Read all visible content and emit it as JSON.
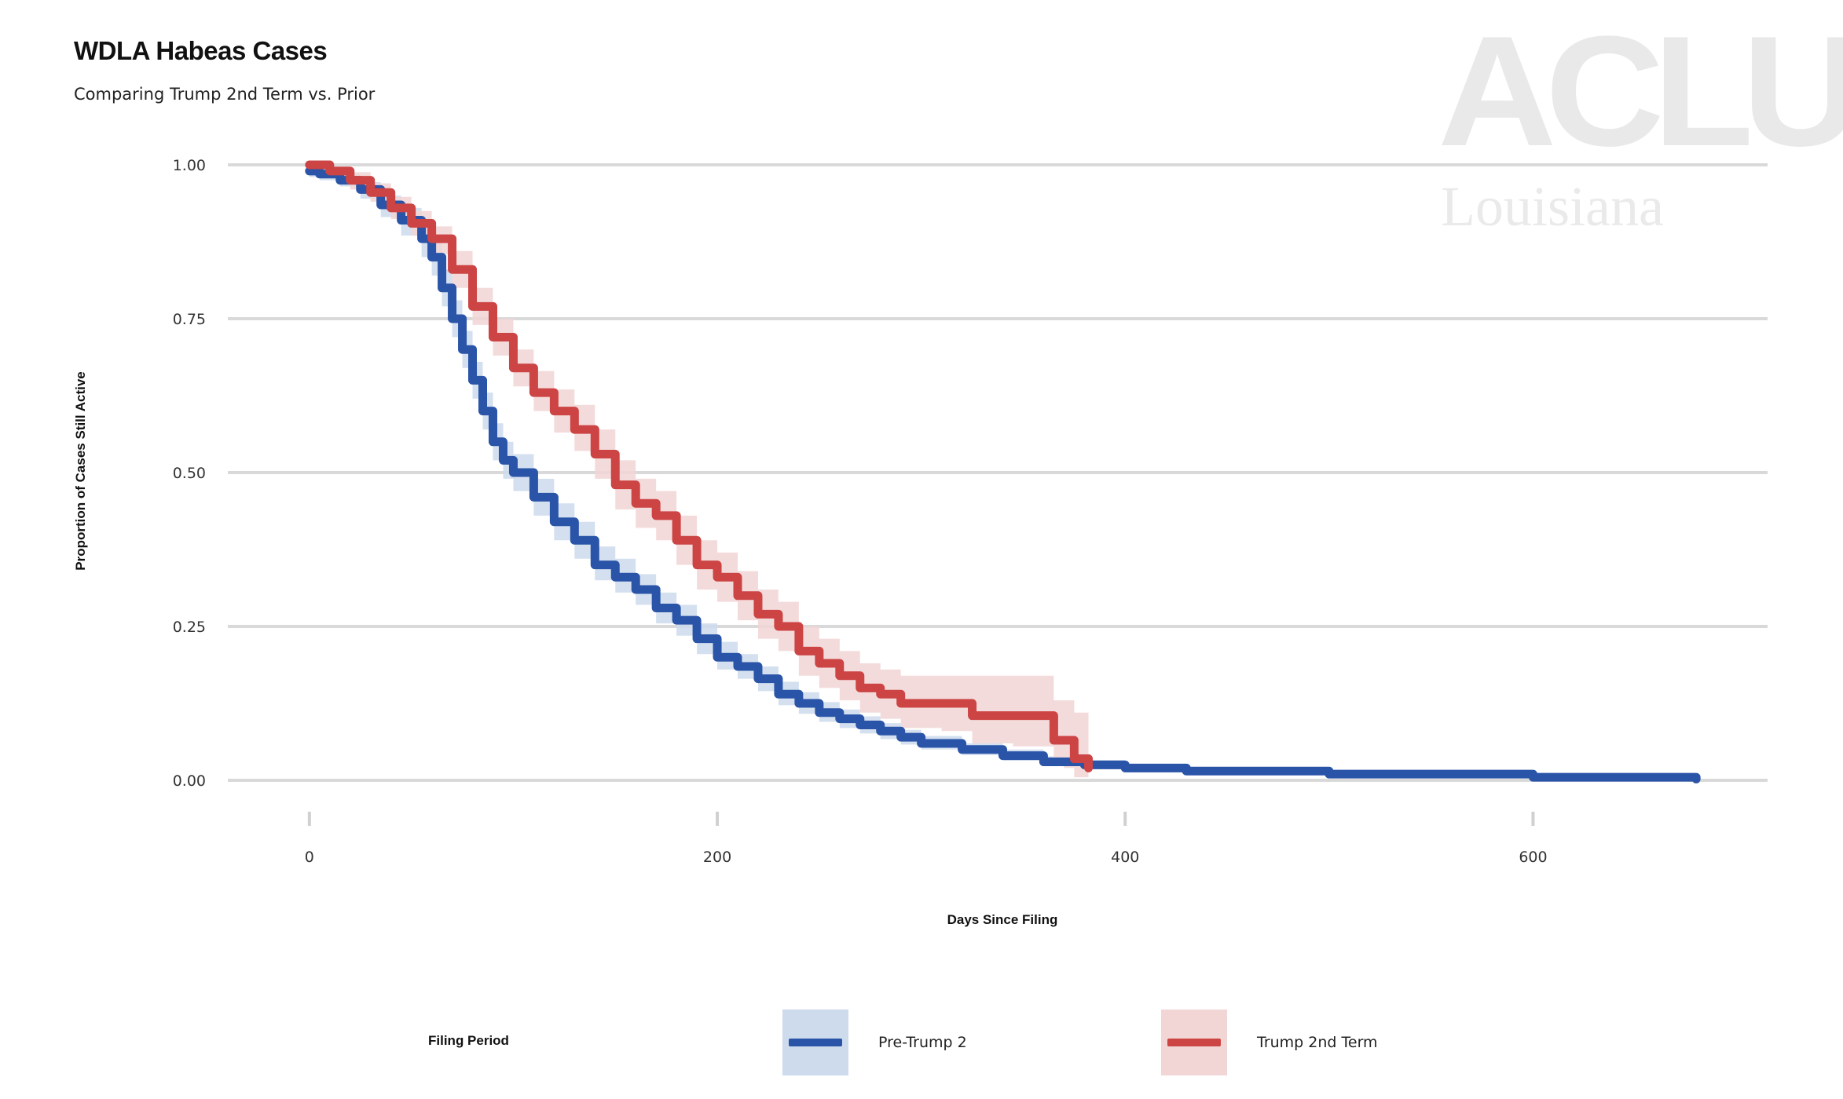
{
  "header": {
    "title": "WDLA Habeas Cases",
    "subtitle": "Comparing Trump 2nd Term vs. Prior"
  },
  "watermark": {
    "logo": "ACLU",
    "sub": "Louisiana"
  },
  "legend": {
    "title": "Filing Period",
    "items": [
      {
        "label": "Pre-Trump 2",
        "color": "#2a54a8",
        "fill": "#cddbec"
      },
      {
        "label": "Trump 2nd Term",
        "color": "#cc4444",
        "fill": "#f2d5d5"
      }
    ]
  },
  "chart_data": {
    "type": "line",
    "title": "WDLA Habeas Cases",
    "subtitle": "Comparing Trump 2nd Term vs. Prior",
    "xlabel": "Days Since Filing",
    "ylabel": "Proportion of Cases Still Active",
    "xlim": [
      -40,
      715
    ],
    "ylim": [
      0,
      1
    ],
    "xticks": [
      0,
      200,
      400,
      600
    ],
    "yticks": [
      0.0,
      0.25,
      0.5,
      0.75,
      1.0
    ],
    "ytick_labels": [
      "0.00",
      "0.25",
      "0.50",
      "0.75",
      "1.00"
    ],
    "grid": "horizontal",
    "legend_position": "bottom",
    "series": [
      {
        "name": "Pre-Trump 2",
        "color": "#2a54a8",
        "band_color": "#cddbec",
        "x": [
          0,
          5,
          15,
          25,
          35,
          45,
          55,
          60,
          65,
          70,
          75,
          80,
          85,
          90,
          95,
          100,
          110,
          120,
          130,
          140,
          150,
          160,
          170,
          180,
          190,
          200,
          210,
          220,
          230,
          240,
          250,
          260,
          270,
          280,
          290,
          300,
          320,
          340,
          360,
          380,
          400,
          430,
          500,
          600,
          680
        ],
        "y": [
          0.99,
          0.985,
          0.975,
          0.96,
          0.935,
          0.91,
          0.88,
          0.85,
          0.8,
          0.75,
          0.7,
          0.65,
          0.6,
          0.55,
          0.52,
          0.5,
          0.46,
          0.42,
          0.39,
          0.35,
          0.33,
          0.31,
          0.28,
          0.26,
          0.23,
          0.2,
          0.185,
          0.165,
          0.14,
          0.125,
          0.11,
          0.1,
          0.09,
          0.08,
          0.07,
          0.06,
          0.05,
          0.04,
          0.03,
          0.025,
          0.02,
          0.015,
          0.01,
          0.005,
          0.002
        ],
        "lower": [
          0.98,
          0.975,
          0.965,
          0.945,
          0.915,
          0.885,
          0.85,
          0.82,
          0.77,
          0.72,
          0.67,
          0.62,
          0.57,
          0.52,
          0.49,
          0.47,
          0.43,
          0.39,
          0.36,
          0.325,
          0.305,
          0.285,
          0.255,
          0.235,
          0.205,
          0.18,
          0.165,
          0.145,
          0.122,
          0.108,
          0.095,
          0.085,
          0.076,
          0.067,
          0.058,
          0.05,
          0.041,
          0.032,
          0.024,
          0.019,
          0.015,
          0.01,
          0.006,
          0.002,
          0.0
        ],
        "upper": [
          1.0,
          0.995,
          0.985,
          0.972,
          0.95,
          0.93,
          0.905,
          0.875,
          0.83,
          0.78,
          0.73,
          0.68,
          0.63,
          0.58,
          0.55,
          0.53,
          0.49,
          0.45,
          0.42,
          0.38,
          0.36,
          0.335,
          0.305,
          0.285,
          0.255,
          0.225,
          0.205,
          0.185,
          0.16,
          0.143,
          0.127,
          0.115,
          0.104,
          0.093,
          0.082,
          0.072,
          0.06,
          0.05,
          0.039,
          0.033,
          0.027,
          0.021,
          0.015,
          0.01,
          0.006
        ]
      },
      {
        "name": "Trump 2nd Term",
        "color": "#cc4444",
        "band_color": "#f2d5d5",
        "x": [
          0,
          10,
          20,
          30,
          40,
          50,
          60,
          70,
          80,
          90,
          100,
          110,
          120,
          130,
          140,
          150,
          160,
          170,
          180,
          190,
          200,
          210,
          220,
          230,
          240,
          250,
          260,
          270,
          280,
          290,
          310,
          325,
          345,
          365,
          370,
          375,
          382
        ],
        "y": [
          1.0,
          0.99,
          0.975,
          0.955,
          0.93,
          0.905,
          0.88,
          0.83,
          0.77,
          0.72,
          0.67,
          0.63,
          0.6,
          0.57,
          0.53,
          0.48,
          0.45,
          0.43,
          0.39,
          0.35,
          0.33,
          0.3,
          0.27,
          0.25,
          0.21,
          0.19,
          0.17,
          0.15,
          0.14,
          0.125,
          0.125,
          0.105,
          0.105,
          0.065,
          0.065,
          0.035,
          0.02
        ],
        "lower": [
          0.99,
          0.98,
          0.96,
          0.94,
          0.912,
          0.885,
          0.855,
          0.8,
          0.74,
          0.69,
          0.64,
          0.6,
          0.565,
          0.535,
          0.49,
          0.44,
          0.41,
          0.39,
          0.35,
          0.31,
          0.29,
          0.26,
          0.23,
          0.21,
          0.17,
          0.15,
          0.13,
          0.11,
          0.1,
          0.085,
          0.08,
          0.06,
          0.055,
          0.025,
          0.02,
          0.005,
          0.0
        ],
        "upper": [
          1.0,
          0.998,
          0.988,
          0.97,
          0.948,
          0.925,
          0.9,
          0.86,
          0.8,
          0.75,
          0.7,
          0.665,
          0.635,
          0.61,
          0.57,
          0.52,
          0.49,
          0.47,
          0.43,
          0.39,
          0.37,
          0.34,
          0.31,
          0.29,
          0.25,
          0.23,
          0.21,
          0.19,
          0.18,
          0.17,
          0.17,
          0.17,
          0.17,
          0.13,
          0.13,
          0.11,
          0.13
        ]
      }
    ]
  }
}
